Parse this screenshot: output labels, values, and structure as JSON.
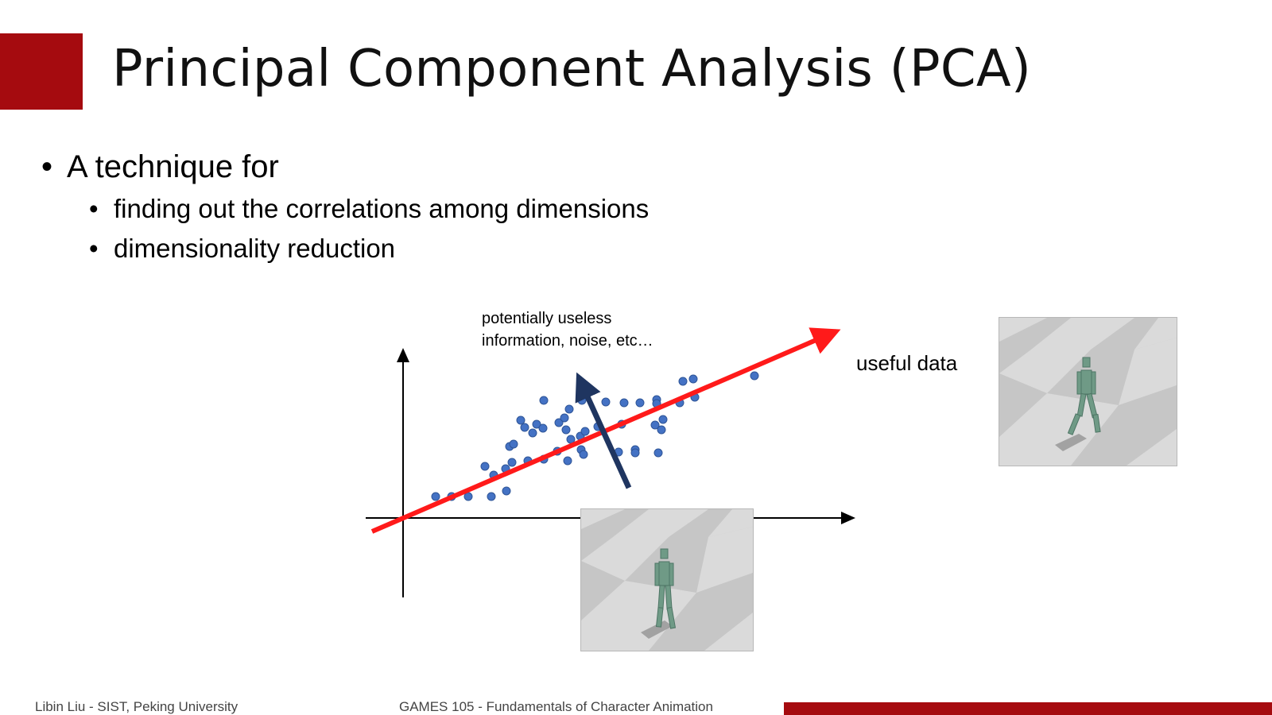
{
  "slide": {
    "title": "Principal Component Analysis (PCA)",
    "bullet_main": "A technique for",
    "sub_bullets": [
      "finding out the correlations among dimensions",
      "dimensionality reduction"
    ]
  },
  "diagram": {
    "noise_label_line1": "potentially useless",
    "noise_label_line2": "information, noise, etc…",
    "useful_label": "useful data",
    "colors": {
      "principal_axis": "#ff1a1a",
      "noise_axis": "#1f3560",
      "points": "#4472c4",
      "axes": "#000000"
    }
  },
  "footer": {
    "author": "Libin Liu - SIST, Peking University",
    "course": "GAMES 105 - Fundamentals of Character Animation"
  },
  "colors": {
    "accent": "#a50b0f"
  }
}
